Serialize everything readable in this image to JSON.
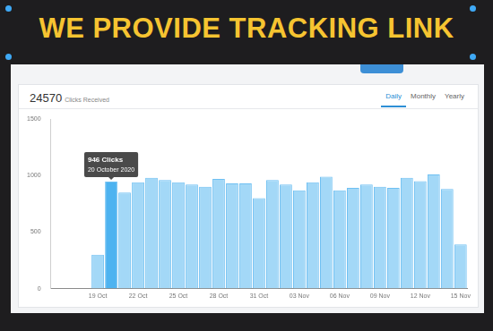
{
  "banner": "WE PROVIDE TRACKING LINK",
  "header": {
    "total": 24570,
    "total_label": "Clicks Received",
    "tabs": [
      "Daily",
      "Monthly",
      "Yearly"
    ],
    "active_tab": "Daily"
  },
  "chart_data": {
    "type": "bar",
    "categories": [
      null,
      null,
      null,
      "19 Oct",
      null,
      null,
      "22 Oct",
      null,
      null,
      "25 Oct",
      null,
      null,
      "28 Oct",
      null,
      null,
      "31 Oct",
      null,
      null,
      "03 Nov",
      null,
      null,
      "06 Nov",
      null,
      null,
      "09 Nov",
      null,
      null,
      "12 Nov",
      null,
      null,
      "15 Nov"
    ],
    "values": [
      0,
      0,
      0,
      300,
      946,
      850,
      940,
      980,
      960,
      940,
      920,
      900,
      970,
      930,
      930,
      800,
      960,
      920,
      870,
      940,
      990,
      870,
      890,
      920,
      900,
      890,
      980,
      950,
      1010,
      880,
      390
    ],
    "colors": [
      "#a3d8f7",
      "#a3d8f7",
      "#a3d8f7",
      "#a3d8f7",
      "#4db3f0",
      "#a3d8f7",
      "#a3d8f7",
      "#a3d8f7",
      "#a3d8f7",
      "#a3d8f7",
      "#a3d8f7",
      "#a3d8f7",
      "#a3d8f7",
      "#a3d8f7",
      "#a3d8f7",
      "#a3d8f7",
      "#a3d8f7",
      "#a3d8f7",
      "#a3d8f7",
      "#a3d8f7",
      "#a3d8f7",
      "#a3d8f7",
      "#a3d8f7",
      "#a3d8f7",
      "#a3d8f7",
      "#a3d8f7",
      "#a3d8f7",
      "#a3d8f7",
      "#a3d8f7",
      "#a3d8f7",
      "#a3d8f7"
    ],
    "ylim": [
      0,
      1500
    ],
    "yticks": [
      0,
      500,
      1000,
      1500
    ],
    "grid": false,
    "annotation": {
      "title": "946 Clicks",
      "text": "20 October 2020"
    }
  }
}
